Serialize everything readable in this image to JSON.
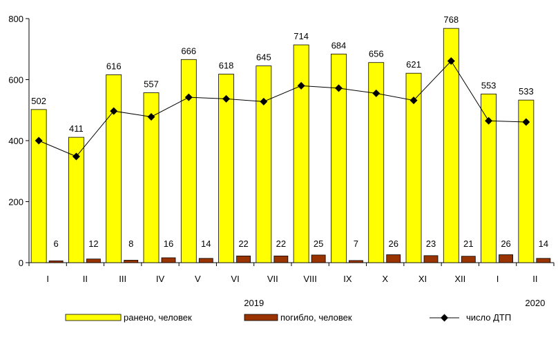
{
  "chart_data": {
    "type": "bar",
    "categories": [
      "I",
      "II",
      "III",
      "IV",
      "V",
      "VI",
      "VII",
      "VIII",
      "IX",
      "X",
      "XI",
      "XII",
      "I",
      "II"
    ],
    "year_labels": [
      {
        "label": "2019",
        "category_index": 5.5
      },
      {
        "label": "2020",
        "category_index": 13
      }
    ],
    "series": [
      {
        "name": "ранено, человек",
        "type": "bar",
        "color": "#ffff00",
        "values": [
          502,
          411,
          616,
          557,
          666,
          618,
          645,
          714,
          684,
          656,
          621,
          768,
          553,
          533
        ]
      },
      {
        "name": "погибло, человек",
        "type": "bar",
        "color": "#993300",
        "values": [
          6,
          12,
          8,
          16,
          14,
          22,
          22,
          25,
          7,
          26,
          23,
          21,
          26,
          14
        ]
      },
      {
        "name": "число ДТП",
        "type": "line",
        "color": "#000000",
        "marker": "diamond",
        "values": [
          400,
          348,
          497,
          478,
          542,
          537,
          528,
          580,
          572,
          555,
          532,
          661,
          465,
          461
        ]
      }
    ],
    "ylim": [
      0,
      800
    ],
    "yticks": [
      0,
      200,
      400,
      600,
      800
    ],
    "grid": false,
    "legend": "bottom",
    "title": "",
    "xlabel": "",
    "ylabel": ""
  }
}
